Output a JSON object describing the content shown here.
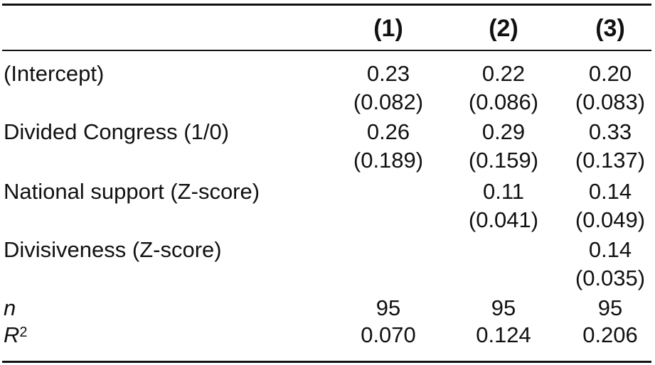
{
  "columns": [
    "(1)",
    "(2)",
    "(3)"
  ],
  "rows": [
    {
      "label": "(Intercept)",
      "est": [
        "0.23",
        "0.22",
        "0.20"
      ],
      "se": [
        "(0.082)",
        "(0.086)",
        "(0.083)"
      ]
    },
    {
      "label": "Divided Congress (1/0)",
      "est": [
        "0.26",
        "0.29",
        "0.33"
      ],
      "se": [
        "(0.189)",
        "(0.159)",
        "(0.137)"
      ]
    },
    {
      "label": "National support (Z-score)",
      "est": [
        "",
        "0.11",
        "0.14"
      ],
      "se": [
        "",
        "(0.041)",
        "(0.049)"
      ]
    },
    {
      "label": "Divisiveness (Z-score)",
      "est": [
        "",
        "",
        "0.14"
      ],
      "se": [
        "",
        "",
        "(0.035)"
      ]
    }
  ],
  "stats": {
    "n_label": "n",
    "n": [
      "95",
      "95",
      "95"
    ],
    "r2_label": "R",
    "r2_sup": "2",
    "r2": [
      "0.070",
      "0.124",
      "0.206"
    ]
  }
}
